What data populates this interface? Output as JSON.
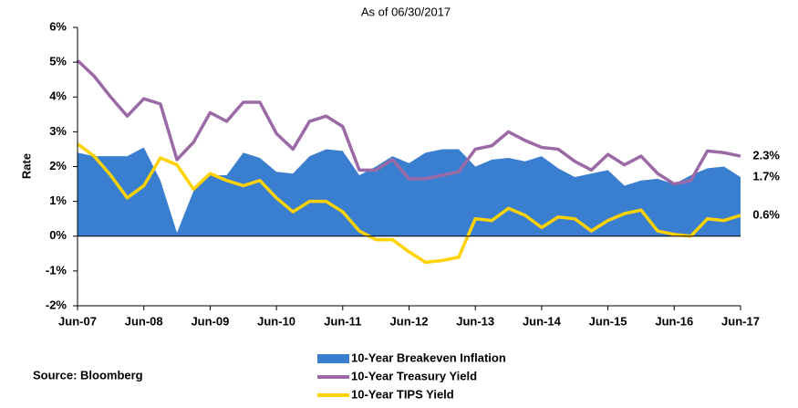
{
  "chart_data": {
    "type": "line",
    "title": "As of 06/30/2017",
    "y_label": "Rate",
    "source": "Source: Bloomberg",
    "categories": [
      "Jun-07",
      null,
      null,
      null,
      "Jun-08",
      null,
      null,
      null,
      "Jun-09",
      null,
      null,
      null,
      "Jun-10",
      null,
      null,
      null,
      "Jun-11",
      null,
      null,
      null,
      "Jun-12",
      null,
      null,
      null,
      "Jun-13",
      null,
      null,
      null,
      "Jun-14",
      null,
      null,
      null,
      "Jun-15",
      null,
      null,
      null,
      "Jun-16",
      null,
      null,
      null,
      "Jun-17"
    ],
    "series": [
      {
        "name": "10-Year Breakeven Inflation",
        "kind": "area",
        "color": "#3a7fcf",
        "values": [
          2.4,
          2.3,
          2.3,
          2.3,
          2.55,
          1.6,
          0.1,
          1.3,
          1.75,
          1.75,
          2.4,
          2.25,
          1.85,
          1.8,
          2.3,
          2.5,
          2.45,
          1.75,
          2.0,
          2.3,
          2.1,
          2.4,
          2.5,
          2.5,
          2.0,
          2.2,
          2.25,
          2.15,
          2.3,
          1.95,
          1.7,
          1.8,
          1.9,
          1.45,
          1.6,
          1.65,
          1.5,
          1.75,
          1.95,
          2.0,
          1.7
        ]
      },
      {
        "name": "10-Year Treasury Yield",
        "kind": "line",
        "color": "#9b6aa6",
        "values": [
          5.05,
          4.6,
          4.0,
          3.45,
          3.95,
          3.8,
          2.2,
          2.7,
          3.55,
          3.3,
          3.85,
          3.85,
          2.95,
          2.5,
          3.3,
          3.45,
          3.15,
          1.9,
          1.9,
          2.2,
          1.65,
          1.65,
          1.75,
          1.85,
          2.5,
          2.6,
          3.0,
          2.75,
          2.55,
          2.5,
          2.15,
          1.9,
          2.35,
          2.05,
          2.3,
          1.8,
          1.5,
          1.6,
          2.45,
          2.4,
          2.3
        ]
      },
      {
        "name": "10-Year TIPS Yield",
        "kind": "line",
        "color": "#ffd200",
        "values": [
          2.65,
          2.3,
          1.75,
          1.1,
          1.45,
          2.25,
          2.05,
          1.35,
          1.8,
          1.6,
          1.45,
          1.6,
          1.1,
          0.7,
          1.0,
          1.0,
          0.7,
          0.15,
          -0.1,
          -0.1,
          -0.45,
          -0.75,
          -0.7,
          -0.6,
          0.5,
          0.45,
          0.8,
          0.6,
          0.25,
          0.55,
          0.5,
          0.15,
          0.45,
          0.65,
          0.75,
          0.15,
          0.05,
          0.0,
          0.5,
          0.45,
          0.6
        ]
      }
    ],
    "annotations": [
      {
        "text": "2.3%",
        "value": 2.3
      },
      {
        "text": "1.7%",
        "value": 1.7
      },
      {
        "text": "0.6%",
        "value": 0.6
      }
    ],
    "ylim": [
      -2,
      6
    ],
    "yticks": [
      {
        "value": -2,
        "label": "-2%"
      },
      {
        "value": -1,
        "label": "-1%"
      },
      {
        "value": 0,
        "label": "0%"
      },
      {
        "value": 1,
        "label": "1%"
      },
      {
        "value": 2,
        "label": "2%"
      },
      {
        "value": 3,
        "label": "3%"
      },
      {
        "value": 4,
        "label": "4%"
      },
      {
        "value": 5,
        "label": "5%"
      },
      {
        "value": 6,
        "label": "6%"
      }
    ],
    "grid": false
  }
}
